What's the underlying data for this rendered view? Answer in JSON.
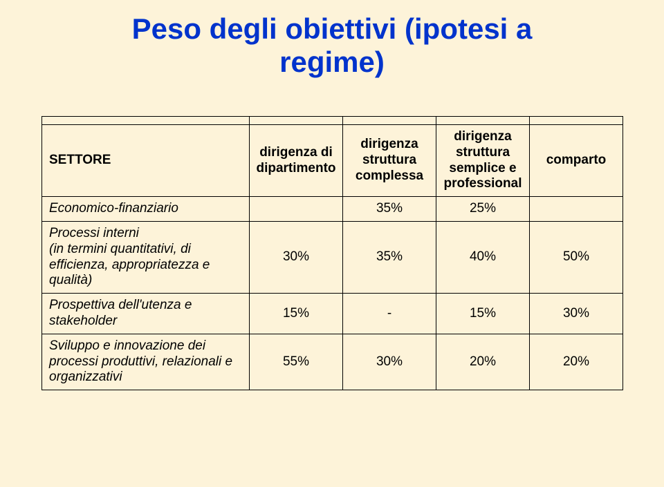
{
  "title_line1": "Peso degli obiettivi (ipotesi a",
  "title_line2": "regime)",
  "background_color": "#fdf3d9",
  "title_color": "#0033cc",
  "border_color": "#000000",
  "table": {
    "headers": {
      "settore": "SETTORE",
      "col1": "dirigenza di dipartimento",
      "col2": "dirigenza struttura complessa",
      "col3": "dirigenza struttura semplice e professional",
      "col4": "comparto"
    },
    "rows": [
      {
        "label": "Economico-finanziario",
        "c1": "",
        "c2": "35%",
        "c3": "25%",
        "c4": ""
      },
      {
        "label": "Processi interni\n(in termini quantitativi, di efficienza, appropriatezza e qualità)",
        "c1": "30%",
        "c2": "35%",
        "c3": "40%",
        "c4": "50%"
      },
      {
        "label": "Prospettiva dell'utenza e stakeholder",
        "c1": "15%",
        "c2": "-",
        "c3": "15%",
        "c4": "30%"
      },
      {
        "label": "Sviluppo e innovazione dei processi produttivi, relazionali e organizzativi",
        "c1": "55%",
        "c2": "30%",
        "c3": "20%",
        "c4": "20%"
      }
    ]
  }
}
